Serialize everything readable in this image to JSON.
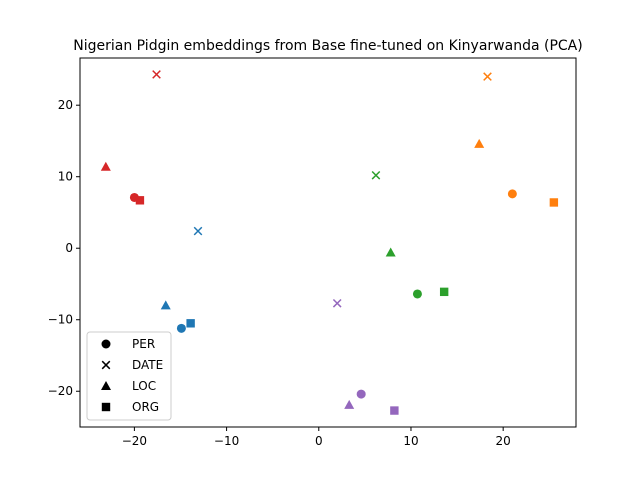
{
  "chart_data": {
    "type": "scatter",
    "title": "Nigerian Pidgin embeddings from Base fine-tuned on Kinyarwanda (PCA)",
    "xlabel": "",
    "ylabel": "",
    "xlim": [
      -25.9,
      27.9
    ],
    "ylim": [
      -25.0,
      26.6
    ],
    "xticks": [
      -20,
      -10,
      0,
      10,
      20
    ],
    "yticks": [
      -20,
      -10,
      0,
      10,
      20
    ],
    "tick_labels_x": [
      "−20",
      "−10",
      "0",
      "10",
      "20"
    ],
    "tick_labels_y": [
      "−20",
      "−10",
      "0",
      "10",
      "20"
    ],
    "grid": false,
    "legend": {
      "placement": "lower-left",
      "entries": [
        {
          "label": "PER",
          "marker": "circle"
        },
        {
          "label": "DATE",
          "marker": "x"
        },
        {
          "label": "LOC",
          "marker": "triangle"
        },
        {
          "label": "ORG",
          "marker": "square"
        }
      ]
    },
    "points": [
      {
        "x": -20.0,
        "y": 7.1,
        "marker": "circle",
        "color": "#d62728"
      },
      {
        "x": -19.4,
        "y": 6.7,
        "marker": "square",
        "color": "#d62728"
      },
      {
        "x": -23.1,
        "y": 11.4,
        "marker": "triangle",
        "color": "#d62728"
      },
      {
        "x": -17.6,
        "y": 24.3,
        "marker": "x",
        "color": "#d62728"
      },
      {
        "x": 18.3,
        "y": 24.0,
        "marker": "x",
        "color": "#ff7f0e"
      },
      {
        "x": 17.4,
        "y": 14.6,
        "marker": "triangle",
        "color": "#ff7f0e"
      },
      {
        "x": 21.0,
        "y": 7.6,
        "marker": "circle",
        "color": "#ff7f0e"
      },
      {
        "x": 25.5,
        "y": 6.4,
        "marker": "square",
        "color": "#ff7f0e"
      },
      {
        "x": 6.2,
        "y": 10.2,
        "marker": "x",
        "color": "#2ca02c"
      },
      {
        "x": 7.8,
        "y": -0.6,
        "marker": "triangle",
        "color": "#2ca02c"
      },
      {
        "x": 10.7,
        "y": -6.4,
        "marker": "circle",
        "color": "#2ca02c"
      },
      {
        "x": 13.6,
        "y": -6.1,
        "marker": "square",
        "color": "#2ca02c"
      },
      {
        "x": -13.1,
        "y": 2.4,
        "marker": "x",
        "color": "#1f77b4"
      },
      {
        "x": -16.6,
        "y": -8.0,
        "marker": "triangle",
        "color": "#1f77b4"
      },
      {
        "x": -14.9,
        "y": -11.2,
        "marker": "circle",
        "color": "#1f77b4"
      },
      {
        "x": -13.9,
        "y": -10.5,
        "marker": "square",
        "color": "#1f77b4"
      },
      {
        "x": 2.0,
        "y": -7.7,
        "marker": "x",
        "color": "#9467bd"
      },
      {
        "x": 4.6,
        "y": -20.4,
        "marker": "circle",
        "color": "#9467bd"
      },
      {
        "x": 3.3,
        "y": -21.9,
        "marker": "triangle",
        "color": "#9467bd"
      },
      {
        "x": 8.2,
        "y": -22.7,
        "marker": "square",
        "color": "#9467bd"
      }
    ]
  }
}
